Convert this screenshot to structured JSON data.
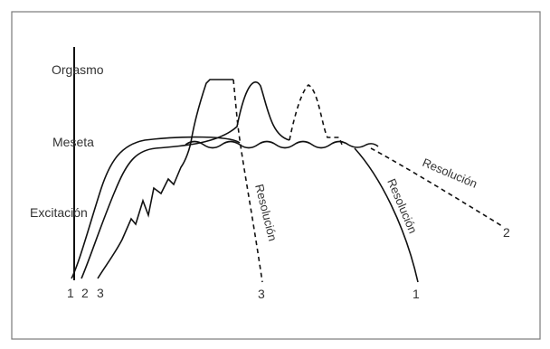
{
  "diagram": {
    "phases": {
      "orgasm": "Orgasmo",
      "plateau": "Meseta",
      "excitement": "Excitación"
    },
    "curve_labels": {
      "start_1": "1",
      "start_2": "2",
      "start_3": "3",
      "end_1": "1",
      "end_2": "2",
      "end_3": "3"
    },
    "resolution_labels": {
      "res_3": "Resolución",
      "res_1": "Resolución",
      "res_2": "Resolución"
    },
    "colors": {
      "line": "#111111",
      "frame": "#7a7a7a",
      "text": "#333333"
    }
  }
}
